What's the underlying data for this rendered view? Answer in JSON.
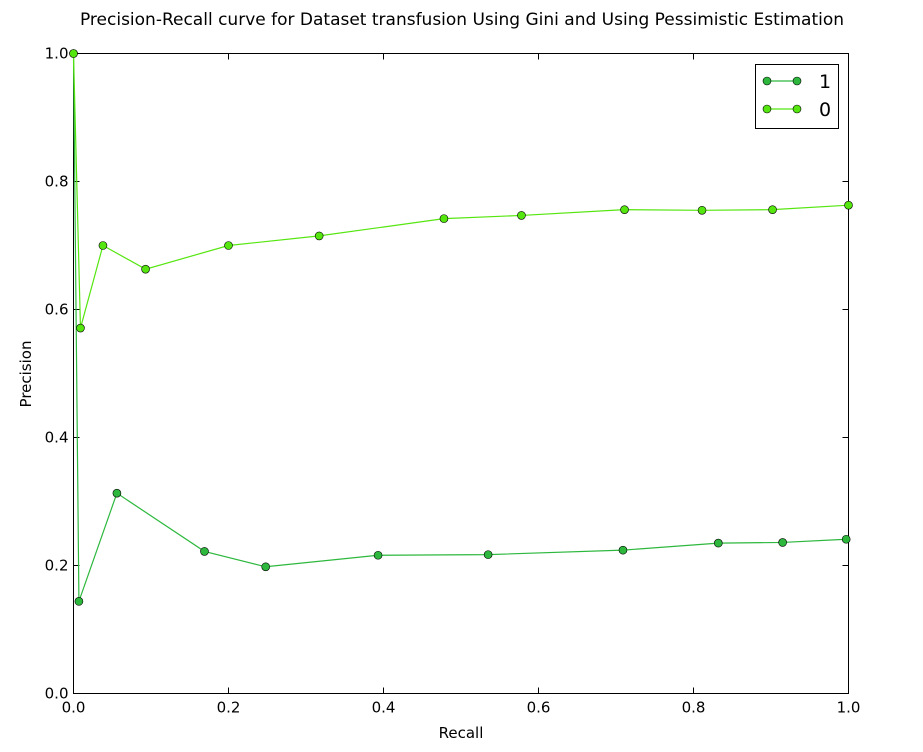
{
  "chart_data": {
    "type": "line",
    "title": "Precision-Recall curve for Dataset transfusion Using Gini and Using Pessimistic Estimation",
    "xlabel": "Recall",
    "ylabel": "Precision",
    "xlim": [
      0.0,
      1.0
    ],
    "ylim": [
      0.0,
      1.0
    ],
    "xticks": [
      "0.0",
      "0.2",
      "0.4",
      "0.6",
      "0.8",
      "1.0"
    ],
    "yticks": [
      "0.0",
      "0.2",
      "0.4",
      "0.6",
      "0.8",
      "1.0"
    ],
    "grid": false,
    "legend_position": "top-right",
    "series": [
      {
        "name": "1",
        "color": "#2db83d",
        "marker": "circle",
        "points": [
          [
            0.0,
            1.0
          ],
          [
            0.007,
            0.144
          ],
          [
            0.056,
            0.313
          ],
          [
            0.169,
            0.222
          ],
          [
            0.248,
            0.198
          ],
          [
            0.393,
            0.216
          ],
          [
            0.535,
            0.217
          ],
          [
            0.709,
            0.224
          ],
          [
            0.832,
            0.235
          ],
          [
            0.915,
            0.236
          ],
          [
            0.997,
            0.241
          ]
        ]
      },
      {
        "name": "0",
        "color": "#55e60f",
        "marker": "circle",
        "points": [
          [
            0.0,
            1.0
          ],
          [
            0.009,
            0.571
          ],
          [
            0.038,
            0.7
          ],
          [
            0.093,
            0.663
          ],
          [
            0.2,
            0.7
          ],
          [
            0.317,
            0.715
          ],
          [
            0.478,
            0.742
          ],
          [
            0.578,
            0.747
          ],
          [
            0.711,
            0.756
          ],
          [
            0.811,
            0.755
          ],
          [
            0.902,
            0.756
          ],
          [
            1.0,
            0.763
          ]
        ]
      }
    ]
  }
}
